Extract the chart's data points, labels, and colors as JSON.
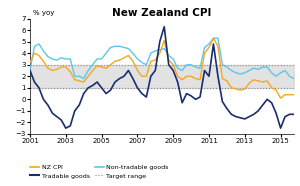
{
  "title": "New Zealand CPI",
  "ylabel": "% yoy",
  "xlim": [
    2001,
    2015.75
  ],
  "ylim": [
    -3,
    7
  ],
  "yticks": [
    -3,
    -2,
    -1,
    0,
    1,
    2,
    3,
    4,
    5,
    6,
    7
  ],
  "target_low": 1,
  "target_high": 3,
  "years": [
    2001.0,
    2001.25,
    2001.5,
    2001.75,
    2002.0,
    2002.25,
    2002.5,
    2002.75,
    2003.0,
    2003.25,
    2003.5,
    2003.75,
    2004.0,
    2004.25,
    2004.5,
    2004.75,
    2005.0,
    2005.25,
    2005.5,
    2005.75,
    2006.0,
    2006.25,
    2006.5,
    2006.75,
    2007.0,
    2007.25,
    2007.5,
    2007.75,
    2008.0,
    2008.25,
    2008.5,
    2008.75,
    2009.0,
    2009.25,
    2009.5,
    2009.75,
    2010.0,
    2010.25,
    2010.5,
    2010.75,
    2011.0,
    2011.25,
    2011.5,
    2011.75,
    2012.0,
    2012.25,
    2012.5,
    2012.75,
    2013.0,
    2013.25,
    2013.5,
    2013.75,
    2014.0,
    2014.25,
    2014.5,
    2014.75,
    2015.0,
    2015.25,
    2015.5,
    2015.75
  ],
  "nz_cpi": [
    3.2,
    4.0,
    3.8,
    3.3,
    2.7,
    2.5,
    2.6,
    2.8,
    2.8,
    2.4,
    1.7,
    1.6,
    1.5,
    2.0,
    2.5,
    2.9,
    2.8,
    2.7,
    3.0,
    3.3,
    3.4,
    3.6,
    3.8,
    3.3,
    2.5,
    2.0,
    2.0,
    3.3,
    3.4,
    4.0,
    5.1,
    3.4,
    3.0,
    2.0,
    1.7,
    2.0,
    2.0,
    1.8,
    1.7,
    4.0,
    4.5,
    5.3,
    4.6,
    1.8,
    1.6,
    1.0,
    0.9,
    0.8,
    0.9,
    1.4,
    1.7,
    1.6,
    1.5,
    1.6,
    1.0,
    0.8,
    0.1,
    0.4,
    0.4,
    0.4
  ],
  "tradable": [
    2.5,
    1.5,
    1.0,
    0.0,
    -0.5,
    -1.2,
    -1.5,
    -1.8,
    -2.5,
    -2.3,
    -1.0,
    -0.5,
    0.5,
    1.0,
    1.2,
    1.5,
    1.0,
    0.5,
    0.8,
    1.5,
    1.8,
    2.0,
    2.5,
    1.8,
    1.0,
    0.5,
    0.2,
    2.0,
    2.5,
    5.0,
    6.3,
    3.0,
    2.5,
    1.5,
    -0.3,
    0.5,
    0.3,
    0.0,
    0.2,
    2.5,
    2.0,
    4.8,
    2.0,
    -0.2,
    -0.8,
    -1.3,
    -1.5,
    -1.6,
    -1.7,
    -1.5,
    -1.3,
    -1.0,
    -0.5,
    0.0,
    -0.3,
    -1.2,
    -2.5,
    -1.5,
    -1.3,
    -1.3
  ],
  "non_tradable": [
    2.5,
    4.6,
    4.8,
    4.2,
    3.7,
    3.5,
    3.4,
    3.6,
    3.5,
    3.5,
    2.0,
    2.0,
    1.8,
    2.5,
    3.0,
    3.5,
    3.5,
    4.0,
    4.5,
    4.6,
    4.6,
    4.5,
    4.4,
    4.0,
    3.5,
    3.2,
    3.0,
    4.0,
    4.2,
    4.3,
    4.4,
    3.8,
    3.5,
    2.7,
    2.5,
    3.0,
    3.0,
    2.8,
    2.7,
    4.5,
    4.8,
    5.3,
    5.3,
    3.0,
    2.8,
    2.5,
    2.3,
    2.2,
    2.3,
    2.5,
    2.7,
    2.6,
    2.8,
    2.8,
    2.3,
    2.0,
    2.3,
    2.5,
    2.0,
    1.8
  ],
  "nz_cpi_color": "#f5a623",
  "tradable_color": "#1a2d6e",
  "non_tradable_color": "#5bc8e8",
  "target_fill_color": "#d0d0d0",
  "target_line_color": "#888888",
  "xticks": [
    2001,
    2003,
    2005,
    2007,
    2009,
    2011,
    2013,
    2015
  ]
}
